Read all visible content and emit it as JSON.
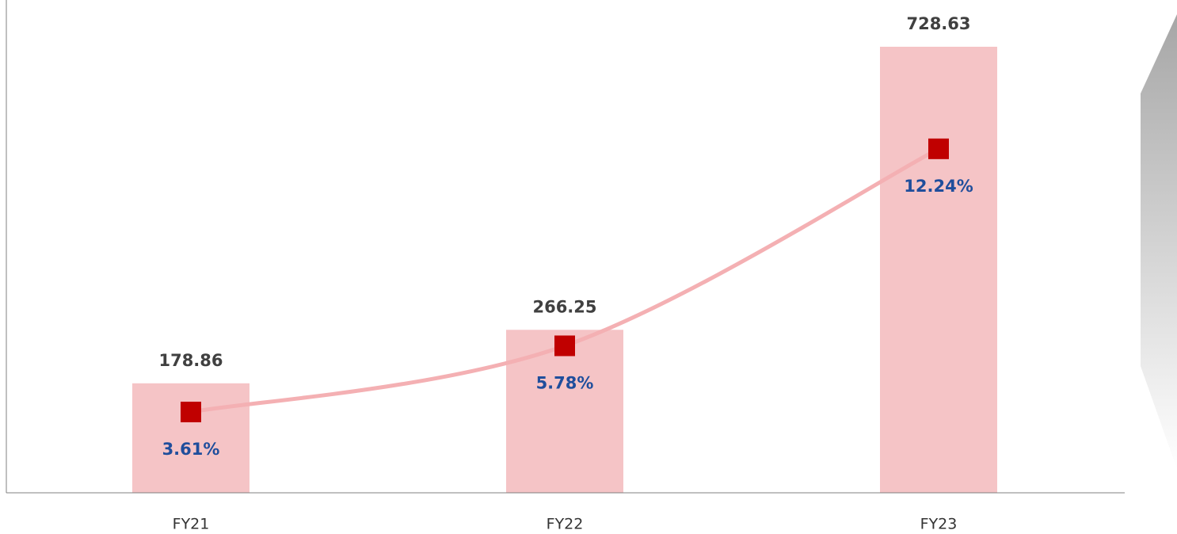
{
  "chart_data": {
    "type": "bar",
    "categories": [
      "FY21",
      "FY22",
      "FY23"
    ],
    "series": [
      {
        "type": "bar",
        "color": "#f5c4c6",
        "label_color": "#404040",
        "values": [
          178.86,
          266.25,
          728.63
        ]
      },
      {
        "type": "line",
        "axis": "y2",
        "color": "#f4b0b3",
        "marker_color": "#c00000",
        "label_color": "#1f4e9c",
        "values": [
          3.61,
          5.78,
          12.24
        ],
        "value_labels": [
          "3.61%",
          "5.78%",
          "12.24%"
        ]
      }
    ],
    "ylim": [
      0,
      805
    ],
    "y2lim": [
      0.96,
      17.12
    ],
    "grid": false
  }
}
